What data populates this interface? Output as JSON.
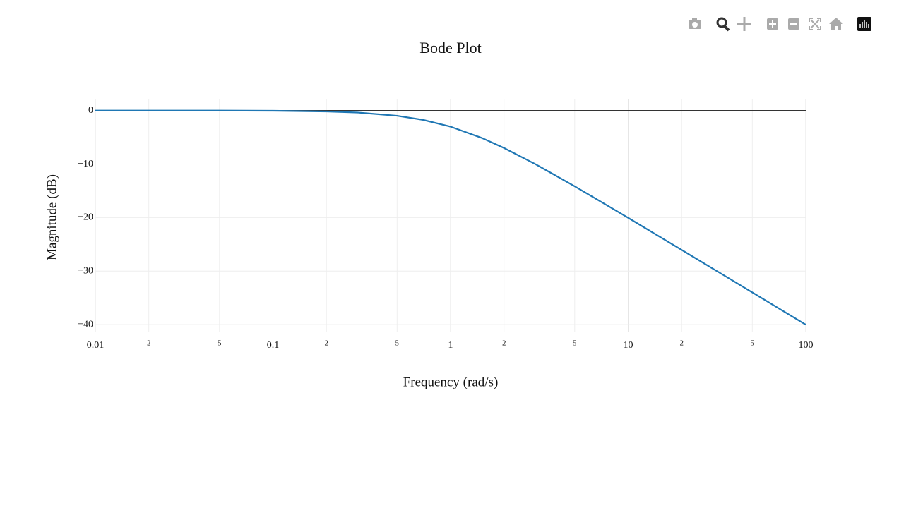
{
  "chart_data": {
    "type": "line",
    "title": "Bode Plot",
    "x_label": "Frequency (rad/s)",
    "y_label": "Magnitude (dB)",
    "x": [
      0.01,
      0.02,
      0.05,
      0.1,
      0.2,
      0.3,
      0.5,
      0.7,
      1,
      1.5,
      2,
      3,
      5,
      7,
      10,
      20,
      50,
      100
    ],
    "values": [
      0,
      0,
      -0.01,
      -0.04,
      -0.17,
      -0.37,
      -0.97,
      -1.74,
      -3.01,
      -5.12,
      -6.99,
      -10,
      -14.15,
      -17.0,
      -20.04,
      -26.03,
      -33.98,
      -40
    ],
    "color": "#1f77b4",
    "xscale": "log",
    "xlim": [
      0.01,
      100
    ],
    "xticks": [
      0.01,
      {
        "value": 0.02,
        "label": "2"
      },
      {
        "value": 0.05,
        "label": "5"
      },
      0.1,
      {
        "value": 0.2,
        "label": "2"
      },
      {
        "value": 0.5,
        "label": "5"
      },
      1,
      {
        "value": 2,
        "label": "2"
      },
      {
        "value": 5,
        "label": "5"
      },
      10,
      {
        "value": 20,
        "label": "2"
      },
      {
        "value": 50,
        "label": "5"
      },
      100
    ],
    "ylim": [
      -41.3,
      2.2
    ],
    "yticks": [
      0,
      {
        "value": -10,
        "label": "−10"
      },
      {
        "value": -20,
        "label": "−20"
      },
      {
        "value": -30,
        "label": "−30"
      },
      {
        "value": -40,
        "label": "−40"
      }
    ],
    "grid": true,
    "zeroline": true
  }
}
